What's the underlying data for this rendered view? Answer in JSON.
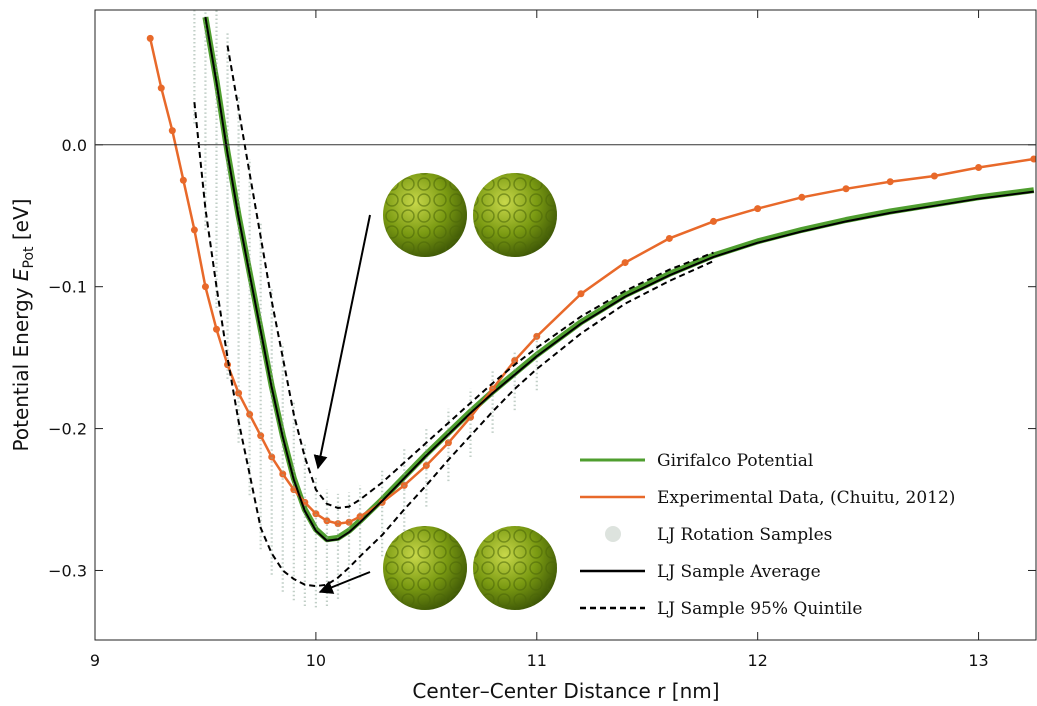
{
  "chart_data": {
    "type": "line",
    "x_label": "Center–Center Distance r [nm]",
    "y_label": {
      "text": "Potential Energy",
      "symbol": "E",
      "subscript": "Pot",
      "unit": "[eV]"
    },
    "xlim": [
      9,
      13.26
    ],
    "ylim": [
      -0.349,
      0.095
    ],
    "xticks": [
      9,
      10,
      11,
      12,
      13
    ],
    "yticks": [
      {
        "value": -0.3,
        "label": "−0.3"
      },
      {
        "value": -0.2,
        "label": "−0.2"
      },
      {
        "value": -0.1,
        "label": "−0.1"
      },
      {
        "value": 0,
        "label": "0.0"
      }
    ],
    "x": [
      9.25,
      9.3,
      9.35,
      9.4,
      9.45,
      9.5,
      9.55,
      9.6,
      9.65,
      9.7,
      9.75,
      9.8,
      9.85,
      9.9,
      9.95,
      10.0,
      10.05,
      10.1,
      10.15,
      10.2,
      10.3,
      10.4,
      10.5,
      10.6,
      10.7,
      10.8,
      10.9,
      11.0,
      11.2,
      11.4,
      11.6,
      11.8,
      12.0,
      12.2,
      12.4,
      12.6,
      12.8,
      13.0,
      13.25
    ],
    "series": [
      {
        "name": "Girifalco Potential",
        "style": "line",
        "color": "#4f9e2f",
        "values": [
          null,
          null,
          null,
          null,
          null,
          0.09,
          0.045,
          -0.005,
          -0.05,
          -0.09,
          -0.13,
          -0.17,
          -0.205,
          -0.235,
          -0.257,
          -0.271,
          -0.278,
          -0.277,
          -0.272,
          -0.265,
          -0.25,
          -0.234,
          -0.218,
          -0.203,
          -0.188,
          -0.174,
          -0.161,
          -0.148,
          -0.125,
          -0.106,
          -0.091,
          -0.078,
          -0.068,
          -0.06,
          -0.053,
          -0.047,
          -0.042,
          -0.037,
          -0.032
        ]
      },
      {
        "name": "Experimental Data, (Chuitu, 2012)",
        "style": "line-marker",
        "color": "#e8692a",
        "values": [
          0.075,
          0.04,
          0.01,
          -0.025,
          -0.06,
          -0.1,
          -0.13,
          -0.155,
          -0.175,
          -0.19,
          -0.205,
          -0.22,
          -0.232,
          -0.243,
          -0.252,
          -0.26,
          -0.265,
          -0.267,
          -0.266,
          -0.262,
          -0.252,
          -0.24,
          -0.226,
          -0.21,
          -0.192,
          -0.172,
          -0.152,
          -0.135,
          -0.105,
          -0.083,
          -0.066,
          -0.054,
          -0.045,
          -0.037,
          -0.031,
          -0.026,
          -0.022,
          -0.016,
          -0.01
        ]
      },
      {
        "name": "LJ Rotation Samples",
        "style": "samples",
        "color": "#8fa89a",
        "values": [
          null,
          null,
          null,
          null,
          0.015,
          -0.06,
          -0.115,
          -0.165,
          -0.21,
          -0.247,
          -0.285,
          -0.303,
          -0.315,
          -0.321,
          -0.325,
          -0.326,
          -0.325,
          -0.32,
          -0.313,
          -0.305,
          -0.29,
          -0.272,
          -0.255,
          -0.237,
          -0.22,
          -0.203,
          -0.187,
          -0.173,
          null,
          null,
          null,
          null,
          null,
          null,
          null,
          null,
          null,
          null,
          null
        ],
        "values_high": [
          null,
          null,
          null,
          null,
          null,
          null,
          null,
          0.08,
          0.035,
          -0.01,
          -0.055,
          -0.1,
          -0.14,
          -0.18,
          -0.21,
          -0.233,
          -0.243,
          -0.246,
          -0.245,
          -0.24,
          -0.228,
          -0.214,
          -0.2,
          -0.186,
          -0.172,
          -0.158,
          -0.145,
          -0.133,
          null,
          null,
          null,
          null,
          null,
          null,
          null,
          null,
          null,
          null,
          null
        ]
      },
      {
        "name": "LJ Sample Average",
        "style": "line",
        "color": "#000000",
        "values": [
          null,
          null,
          null,
          null,
          null,
          0.09,
          0.044,
          -0.006,
          -0.051,
          -0.091,
          -0.131,
          -0.171,
          -0.206,
          -0.236,
          -0.258,
          -0.272,
          -0.279,
          -0.278,
          -0.273,
          -0.266,
          -0.251,
          -0.235,
          -0.219,
          -0.204,
          -0.189,
          -0.175,
          -0.162,
          -0.149,
          -0.126,
          -0.107,
          -0.092,
          -0.079,
          -0.069,
          -0.061,
          -0.054,
          -0.048,
          -0.043,
          -0.038,
          -0.033
        ]
      },
      {
        "name": "LJ Sample 95% Quintile",
        "style": "dashed-band",
        "color": "#000000",
        "values": [
          null,
          null,
          null,
          null,
          null,
          null,
          null,
          0.07,
          0.025,
          -0.02,
          -0.065,
          -0.11,
          -0.15,
          -0.19,
          -0.22,
          -0.243,
          -0.253,
          -0.256,
          -0.255,
          -0.25,
          -0.238,
          -0.224,
          -0.21,
          -0.196,
          -0.182,
          -0.168,
          -0.155,
          -0.143,
          -0.121,
          -0.103,
          -0.088,
          -0.076,
          null,
          null,
          null,
          null,
          null,
          null,
          null
        ],
        "lower": [
          null,
          null,
          null,
          null,
          0.03,
          -0.045,
          -0.1,
          -0.15,
          -0.195,
          -0.232,
          -0.27,
          -0.288,
          -0.3,
          -0.306,
          -0.31,
          -0.311,
          -0.31,
          -0.305,
          -0.298,
          -0.29,
          -0.275,
          -0.257,
          -0.24,
          -0.222,
          -0.205,
          -0.188,
          -0.172,
          -0.158,
          -0.133,
          -0.112,
          -0.096,
          -0.082,
          null,
          null,
          null,
          null,
          null,
          null,
          null
        ]
      }
    ]
  }
}
